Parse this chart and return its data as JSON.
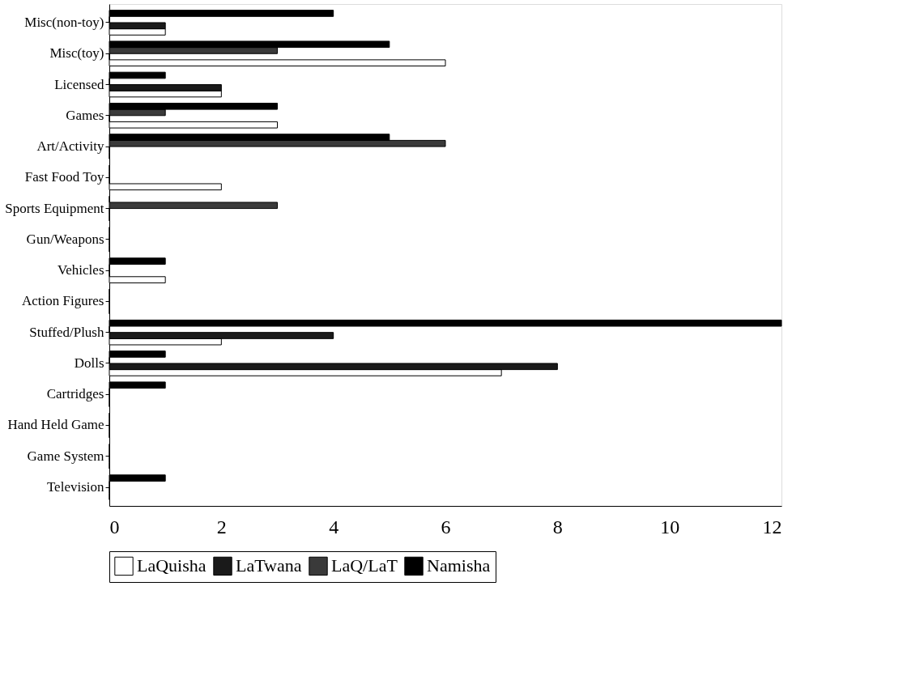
{
  "chart_data": {
    "type": "bar",
    "orientation": "horizontal",
    "categories": [
      "Misc(non-toy)",
      "Misc(toy)",
      "Licensed",
      "Games",
      "Art/Activity",
      "Fast Food Toy",
      "Sports Equipment",
      "Gun/Weapons",
      "Vehicles",
      "Action Figures",
      "Stuffed/Plush",
      "Dolls",
      "Cartridges",
      "Hand Held Game",
      "Game System",
      "Television"
    ],
    "series": [
      {
        "name": "LaQuisha",
        "color": "#ffffff",
        "values": [
          1,
          6,
          2,
          3,
          0,
          2,
          0,
          0,
          1,
          0,
          2,
          7,
          0,
          0,
          0,
          0
        ]
      },
      {
        "name": "LaTwana",
        "color": "#1a1a1a",
        "values": [
          1,
          0,
          2,
          0,
          0,
          0,
          0,
          0,
          0,
          0,
          4,
          8,
          0,
          0,
          0,
          0
        ]
      },
      {
        "name": "LaQ/LaT",
        "color": "#3a3a3a",
        "values": [
          0,
          3,
          0,
          1,
          6,
          0,
          3,
          0,
          0,
          0,
          0,
          0,
          0,
          0,
          0,
          0
        ]
      },
      {
        "name": "Namisha",
        "color": "#000000",
        "values": [
          4,
          5,
          1,
          3,
          5,
          0,
          0,
          0,
          1,
          0,
          12,
          1,
          1,
          0,
          0,
          1
        ]
      }
    ],
    "xlim": [
      0,
      12
    ],
    "xticks": [
      0,
      2,
      4,
      6,
      8,
      10,
      12
    ],
    "grid": false,
    "legend": "bottom"
  }
}
